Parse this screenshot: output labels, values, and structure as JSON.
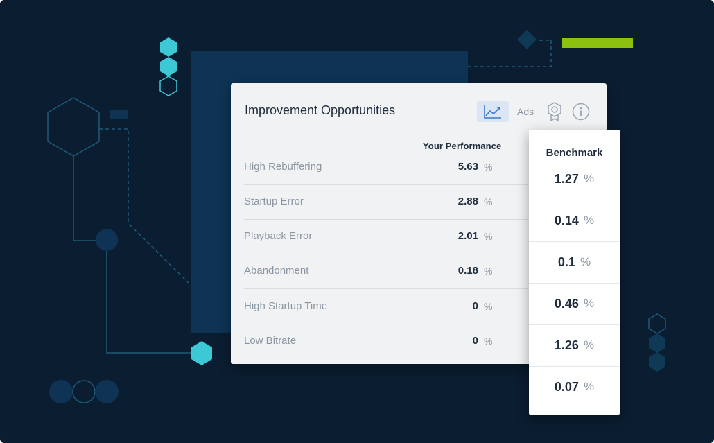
{
  "panel": {
    "title": "Improvement Opportunities",
    "tabs": [
      {
        "name": "chart",
        "icon": "trend-line-icon",
        "active": true
      },
      {
        "name": "ads",
        "label": "Ads"
      },
      {
        "name": "award",
        "icon": "award-badge-icon"
      },
      {
        "name": "info",
        "icon": "info-icon"
      }
    ],
    "columns": {
      "your_performance": "Your Performance",
      "benchmark": "Benchmark"
    },
    "unit": "%",
    "rows": [
      {
        "label": "High Rebuffering",
        "value": "5.63",
        "benchmark": "1.27"
      },
      {
        "label": "Startup Error",
        "value": "2.88",
        "benchmark": "0.14"
      },
      {
        "label": "Playback Error",
        "value": "2.01",
        "benchmark": "0.1"
      },
      {
        "label": "Abandonment",
        "value": "0.18",
        "benchmark": "0.46"
      },
      {
        "label": "High Startup Time",
        "value": "0",
        "benchmark": "1.26"
      },
      {
        "label": "Low Bitrate",
        "value": "0",
        "benchmark": "0.07"
      }
    ]
  },
  "colors": {
    "background": "#0b1d31",
    "accent_teal": "#3cc8d4",
    "accent_green": "#8cc20f",
    "active_tab": "#dbe5f3",
    "text_primary": "#1f2d3d",
    "text_muted": "#8b96a3"
  }
}
